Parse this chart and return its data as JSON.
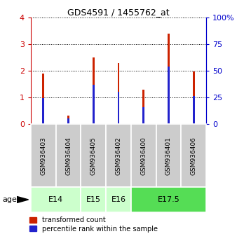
{
  "title": "GDS4591 / 1455762_at",
  "samples": [
    "GSM936403",
    "GSM936404",
    "GSM936405",
    "GSM936402",
    "GSM936400",
    "GSM936401",
    "GSM936406"
  ],
  "transformed_count": [
    1.9,
    0.32,
    2.5,
    2.28,
    1.3,
    3.4,
    1.97
  ],
  "percentile_rank_axis": [
    0.97,
    0.2,
    1.47,
    1.22,
    0.62,
    2.15,
    1.05
  ],
  "age_groups": [
    {
      "label": "E14",
      "start": 0,
      "end": 2,
      "color": "#ccffcc"
    },
    {
      "label": "E15",
      "start": 2,
      "end": 3,
      "color": "#ccffcc"
    },
    {
      "label": "E16",
      "start": 3,
      "end": 4,
      "color": "#ccffcc"
    },
    {
      "label": "E17.5",
      "start": 4,
      "end": 7,
      "color": "#55dd55"
    }
  ],
  "bar_width": 0.08,
  "percentile_bar_width": 0.08,
  "ylim_left": [
    0,
    4
  ],
  "ylim_right": [
    0,
    100
  ],
  "yticks_left": [
    0,
    1,
    2,
    3,
    4
  ],
  "yticks_right": [
    0,
    25,
    50,
    75,
    100
  ],
  "left_tick_color": "#cc0000",
  "right_tick_color": "#0000cc",
  "bar_color_red": "#cc2200",
  "bar_color_blue": "#2222cc",
  "sample_area_color": "#cccccc",
  "legend_labels": [
    "transformed count",
    "percentile rank within the sample"
  ]
}
